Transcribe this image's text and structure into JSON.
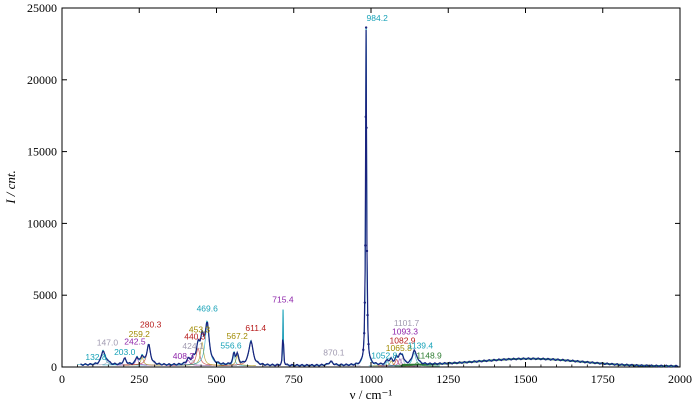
{
  "chart_data": {
    "type": "line",
    "ylabel": "I / cnt.",
    "xlabel": "ν / cm⁻¹",
    "xlim": [
      0,
      2000
    ],
    "ylim": [
      0,
      25000
    ],
    "xticks": [
      0,
      250,
      500,
      750,
      1000,
      1250,
      1500,
      1750,
      2000
    ],
    "yticks": [
      0,
      5000,
      10000,
      15000,
      20000,
      25000
    ],
    "grid": false,
    "colors": {
      "measured": "#1a237e",
      "fit": "#17a2b8",
      "background": "#2e7d32"
    },
    "peaks": [
      {
        "pos": 132.8,
        "height": 980,
        "width": 14,
        "label": "132.8",
        "label_y": 500,
        "label_x": 110,
        "color": "#17a2b8"
      },
      {
        "pos": 147.0,
        "height": 200,
        "width": 12,
        "label": "147.0",
        "label_y": 1500,
        "label_x": 147,
        "color": "#a09ab0"
      },
      {
        "pos": 203.0,
        "height": 420,
        "width": 12,
        "label": "203.0",
        "label_y": 850,
        "label_x": 203,
        "color": "#17a2b8"
      },
      {
        "pos": 242.5,
        "height": 500,
        "width": 10,
        "label": "242.5",
        "label_y": 1550,
        "label_x": 236,
        "color": "#8e24aa"
      },
      {
        "pos": 259.2,
        "height": 550,
        "width": 10,
        "label": "259.2",
        "label_y": 2100,
        "label_x": 250,
        "color": "#a08a00"
      },
      {
        "pos": 280.3,
        "height": 1400,
        "width": 14,
        "label": "280.3",
        "label_y": 2750,
        "label_x": 287,
        "color": "#b71c1c"
      },
      {
        "pos": 408.3,
        "height": 350,
        "width": 12,
        "label": "408.3",
        "label_y": 550,
        "label_x": 393,
        "color": "#8e24aa"
      },
      {
        "pos": 424.1,
        "height": 350,
        "width": 10,
        "label": "424.1",
        "label_y": 1250,
        "label_x": 424,
        "color": "#a09ab0"
      },
      {
        "pos": 440.3,
        "height": 1200,
        "width": 14,
        "label": "440.3",
        "label_y": 1900,
        "label_x": 430,
        "color": "#b71c1c"
      },
      {
        "pos": 453.3,
        "height": 1600,
        "width": 12,
        "label": "453.3",
        "label_y": 2400,
        "label_x": 445,
        "color": "#a08a00"
      },
      {
        "pos": 469.6,
        "height": 2800,
        "width": 16,
        "label": "469.6",
        "label_y": 3850,
        "label_x": 470,
        "color": "#17a2b8"
      },
      {
        "pos": 556.6,
        "height": 750,
        "width": 8,
        "label": "556.6",
        "label_y": 1300,
        "label_x": 547,
        "color": "#17a2b8"
      },
      {
        "pos": 567.2,
        "height": 700,
        "width": 10,
        "label": "567.2",
        "label_y": 1950,
        "label_x": 567,
        "color": "#a08a00"
      },
      {
        "pos": 611.4,
        "height": 1700,
        "width": 16,
        "label": "611.4",
        "label_y": 2500,
        "label_x": 627,
        "color": "#b71c1c"
      },
      {
        "pos": 715.4,
        "height": 3900,
        "width": 2.5,
        "label": "715.4",
        "label_y": 4500,
        "label_x": 715,
        "color": "#8e24aa"
      },
      {
        "pos": 870.1,
        "height": 250,
        "width": 16,
        "label": "870.1",
        "label_y": 800,
        "label_x": 880,
        "color": "#a09ab0"
      },
      {
        "pos": 984.2,
        "height": 23500,
        "width": 4,
        "label": "984.2",
        "label_y": 24100,
        "label_x": 1020,
        "color": "#17a2b8"
      },
      {
        "pos": 1052.8,
        "height": 300,
        "width": 10,
        "label": "1052.8",
        "label_y": 600,
        "label_x": 1043,
        "color": "#17a2b8"
      },
      {
        "pos": 1065.8,
        "height": 350,
        "width": 10,
        "label": "1065.8",
        "label_y": 1100,
        "label_x": 1090,
        "color": "#a08a00"
      },
      {
        "pos": 1082.9,
        "height": 450,
        "width": 10,
        "label": "1082.9",
        "label_y": 1650,
        "label_x": 1102,
        "color": "#b71c1c"
      },
      {
        "pos": 1093.3,
        "height": 500,
        "width": 10,
        "label": "1093.3",
        "label_y": 2250,
        "label_x": 1110,
        "color": "#8e24aa"
      },
      {
        "pos": 1101.7,
        "height": 550,
        "width": 10,
        "label": "1101.7",
        "label_y": 2850,
        "label_x": 1115,
        "color": "#a09ab0"
      },
      {
        "pos": 1139.4,
        "height": 900,
        "width": 14,
        "label": "1139.4",
        "label_y": 1300,
        "label_x": 1160,
        "color": "#17a2b8"
      },
      {
        "pos": 1148.9,
        "height": 250,
        "width": 12,
        "label": "1148.9",
        "label_y": 600,
        "label_x": 1188,
        "color": "#2e7d32"
      }
    ],
    "broad_band": {
      "center": 1520,
      "height": 500,
      "width": 230
    }
  }
}
